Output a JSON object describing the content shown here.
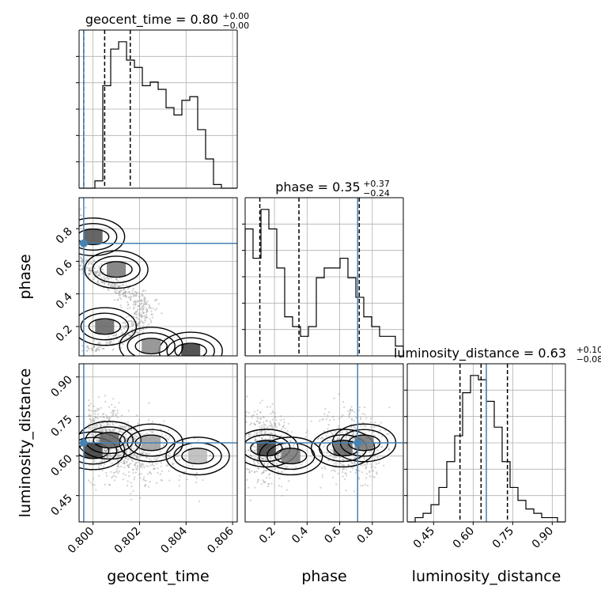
{
  "chart_data": {
    "type": "corner",
    "truth": {
      "geocent_time": 0.7996,
      "phase": 0.71,
      "luminosity_distance": 0.65
    },
    "colors": {
      "truth": "#4682b4",
      "hist": "#000000",
      "grid": "#b0b0b0",
      "points": "#999999"
    },
    "parameters": [
      {
        "name": "geocent_time",
        "range": [
          0.7994,
          0.8062
        ],
        "ticks": [
          0.8,
          0.802,
          0.804,
          0.806
        ],
        "tick_labels": [
          "0.800",
          "0.802",
          "0.804",
          "0.806"
        ],
        "title_prefix": "geocent_time = 0.80",
        "title_sup": "+0.00",
        "title_sub": "−0.00",
        "quantiles": [
          0.7996,
          0.8005,
          0.8016
        ],
        "hist": [
          0,
          0,
          2,
          28,
          38,
          40,
          35,
          33,
          28,
          29,
          27,
          22,
          20,
          24,
          25,
          16,
          8,
          1,
          0,
          0
        ]
      },
      {
        "name": "phase",
        "range": [
          0.02,
          0.99
        ],
        "ticks": [
          0.2,
          0.4,
          0.6,
          0.8
        ],
        "tick_labels": [
          "0.2",
          "0.4",
          "0.6",
          "0.8"
        ],
        "title_prefix": "phase = 0.35",
        "title_sup": "+0.37",
        "title_sub": "−0.24",
        "quantiles": [
          0.11,
          0.35,
          0.72
        ],
        "hist": [
          13,
          10,
          15,
          13,
          9,
          4,
          3,
          2,
          3,
          8,
          9,
          9,
          10,
          8,
          6,
          4,
          3,
          2,
          2,
          1
        ]
      },
      {
        "name": "luminosity_distance",
        "range": [
          0.35,
          0.95
        ],
        "ticks": [
          0.45,
          0.6,
          0.75,
          0.9
        ],
        "tick_labels": [
          "0.45",
          "0.60",
          "0.75",
          "0.90"
        ],
        "title_prefix": "luminosity_distance = 0.63",
        "title_sup": "+0.10",
        "title_sub": "−0.08",
        "quantiles": [
          0.55,
          0.63,
          0.73
        ],
        "hist": [
          0,
          1,
          2,
          4,
          8,
          14,
          20,
          30,
          34,
          33,
          28,
          22,
          14,
          8,
          5,
          3,
          2,
          1,
          1,
          0
        ]
      }
    ]
  }
}
